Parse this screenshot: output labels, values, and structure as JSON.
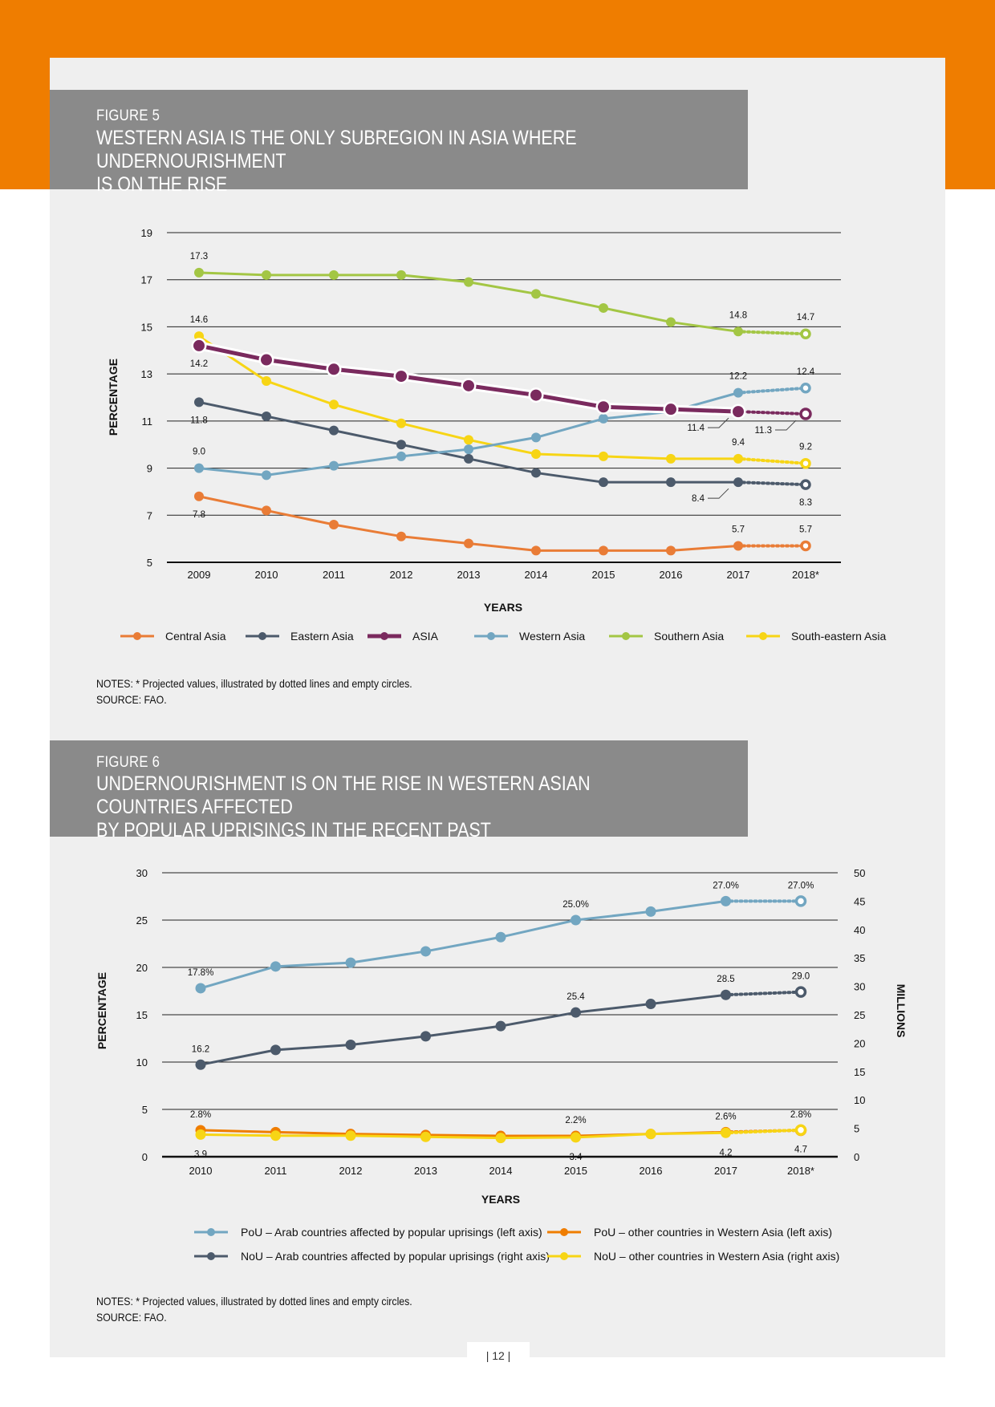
{
  "figure5": {
    "label": "FIGURE 5",
    "title_line1": "WESTERN ASIA IS THE ONLY SUBREGION IN ASIA WHERE UNDERNOURISHMENT",
    "title_line2": "IS ON THE RISE",
    "notes": "NOTES: * Projected values, illustrated by dotted lines and empty circles.",
    "source": "SOURCE: FAO.",
    "chart_data": {
      "type": "line",
      "xlabel": "YEARS",
      "ylabel": "PERCENTAGE",
      "ylim": [
        5,
        19
      ],
      "yticks": [
        5,
        7,
        9,
        11,
        13,
        15,
        17,
        19
      ],
      "categories": [
        "2009",
        "2010",
        "2011",
        "2012",
        "2013",
        "2014",
        "2015",
        "2016",
        "2017",
        "2018*"
      ],
      "projected_from_index": 8,
      "series": [
        {
          "name": "Southern Asia",
          "color": "#a3c644",
          "values": [
            17.3,
            17.2,
            17.2,
            17.2,
            16.9,
            16.4,
            15.8,
            15.2,
            14.8,
            14.7
          ]
        },
        {
          "name": "South-eastern Asia",
          "color": "#f7d515",
          "values": [
            14.6,
            12.7,
            11.7,
            10.9,
            10.2,
            9.6,
            9.5,
            9.4,
            9.4,
            9.2
          ]
        },
        {
          "name": "Eastern Asia",
          "color": "#4c5a6b",
          "values": [
            11.8,
            11.2,
            10.6,
            10.0,
            9.4,
            8.8,
            8.4,
            8.4,
            8.4,
            8.3
          ]
        },
        {
          "name": "Western Asia",
          "color": "#72a6c1",
          "values": [
            9.0,
            8.7,
            9.1,
            9.5,
            9.8,
            10.3,
            11.1,
            11.4,
            12.2,
            12.4
          ]
        },
        {
          "name": "Central Asia",
          "color": "#e97c36",
          "values": [
            7.8,
            7.2,
            6.6,
            6.1,
            5.8,
            5.5,
            5.5,
            5.5,
            5.7,
            5.7
          ]
        },
        {
          "name": "ASIA",
          "color": "#7a2a5e",
          "values": [
            14.2,
            13.6,
            13.2,
            12.9,
            12.5,
            12.1,
            11.6,
            11.5,
            11.4,
            11.3
          ]
        }
      ],
      "legend": [
        "Central Asia",
        "Eastern Asia",
        "ASIA",
        "Western Asia",
        "Southern Asia",
        "South-eastern Asia"
      ],
      "data_labels": [
        {
          "text": "17.3",
          "series": "Southern Asia",
          "index": 0,
          "pos": "above"
        },
        {
          "text": "14.8",
          "series": "Southern Asia",
          "index": 8,
          "pos": "above"
        },
        {
          "text": "14.7",
          "series": "Southern Asia",
          "index": 9,
          "pos": "above"
        },
        {
          "text": "14.6",
          "series": "South-eastern Asia",
          "index": 0,
          "pos": "above"
        },
        {
          "text": "9.4",
          "series": "South-eastern Asia",
          "index": 8,
          "pos": "above"
        },
        {
          "text": "9.2",
          "series": "South-eastern Asia",
          "index": 9,
          "pos": "above"
        },
        {
          "text": "14.2",
          "series": "ASIA",
          "index": 0,
          "pos": "below"
        },
        {
          "text": "11.4",
          "series": "ASIA",
          "index": 8,
          "pos": "leader-below-left"
        },
        {
          "text": "11.3",
          "series": "ASIA",
          "index": 9,
          "pos": "leader-below-left"
        },
        {
          "text": "12.2",
          "series": "Western Asia",
          "index": 8,
          "pos": "above"
        },
        {
          "text": "12.4",
          "series": "Western Asia",
          "index": 9,
          "pos": "above"
        },
        {
          "text": "9.0",
          "series": "Western Asia",
          "index": 0,
          "pos": "above"
        },
        {
          "text": "11.8",
          "series": "Eastern Asia",
          "index": 0,
          "pos": "below"
        },
        {
          "text": "8.4",
          "series": "Eastern Asia",
          "index": 8,
          "pos": "leader-below-left"
        },
        {
          "text": "8.3",
          "series": "Eastern Asia",
          "index": 9,
          "pos": "below"
        },
        {
          "text": "7.8",
          "series": "Central Asia",
          "index": 0,
          "pos": "below"
        },
        {
          "text": "5.7",
          "series": "Central Asia",
          "index": 8,
          "pos": "above"
        },
        {
          "text": "5.7",
          "series": "Central Asia",
          "index": 9,
          "pos": "above"
        }
      ]
    }
  },
  "figure6": {
    "label": "FIGURE 6",
    "title_line1": "UNDERNOURISHMENT IS ON THE RISE IN WESTERN ASIAN COUNTRIES AFFECTED",
    "title_line2": "BY POPULAR UPRISINGS IN THE RECENT PAST",
    "notes": "NOTES: * Projected values, illustrated by dotted lines and empty circles.",
    "source": "SOURCE: FAO.",
    "chart_data": {
      "type": "line",
      "xlabel": "YEARS",
      "ylabel": "PERCENTAGE",
      "ylabel_right": "MILLIONS",
      "ylim": [
        0,
        30
      ],
      "ylim_right": [
        0,
        50
      ],
      "yticks": [
        0,
        5,
        10,
        15,
        20,
        25,
        30
      ],
      "yticks_right": [
        0,
        5,
        10,
        15,
        20,
        25,
        30,
        35,
        40,
        45,
        50
      ],
      "categories": [
        "2010",
        "2011",
        "2012",
        "2013",
        "2014",
        "2015",
        "2016",
        "2017",
        "2018*"
      ],
      "projected_from_index": 7,
      "series": [
        {
          "name": "PoU – Arab countries affected by popular uprisings (left axis)",
          "axis": "left",
          "color": "#72a6c1",
          "values": [
            17.8,
            20.1,
            20.5,
            21.7,
            23.2,
            25.0,
            25.9,
            27.0,
            27.0
          ]
        },
        {
          "name": "NoU – Arab countries affected by popular uprisings (right axis)",
          "axis": "right",
          "color": "#4c5a6b",
          "values": [
            16.2,
            18.8,
            19.7,
            21.2,
            23.0,
            25.4,
            26.9,
            28.5,
            29.0
          ]
        },
        {
          "name": "PoU – other countries in Western Asia (left axis)",
          "axis": "left",
          "color": "#ef7d00",
          "values": [
            2.8,
            2.6,
            2.4,
            2.3,
            2.2,
            2.2,
            2.4,
            2.6,
            2.8
          ]
        },
        {
          "name": "NoU – other countries in Western Asia (right axis)",
          "axis": "right",
          "color": "#f7d515",
          "values": [
            3.9,
            3.7,
            3.7,
            3.5,
            3.3,
            3.4,
            4.0,
            4.2,
            4.7
          ]
        }
      ],
      "data_labels": [
        {
          "text": "17.8%",
          "series": 0,
          "index": 0,
          "pos": "above"
        },
        {
          "text": "25.0%",
          "series": 0,
          "index": 5,
          "pos": "above"
        },
        {
          "text": "27.0%",
          "series": 0,
          "index": 7,
          "pos": "above"
        },
        {
          "text": "27.0%",
          "series": 0,
          "index": 8,
          "pos": "above"
        },
        {
          "text": "16.2",
          "series": 1,
          "index": 0,
          "pos": "above"
        },
        {
          "text": "25.4",
          "series": 1,
          "index": 5,
          "pos": "above"
        },
        {
          "text": "28.5",
          "series": 1,
          "index": 7,
          "pos": "above"
        },
        {
          "text": "29.0",
          "series": 1,
          "index": 8,
          "pos": "above"
        },
        {
          "text": "2.8%",
          "series": 2,
          "index": 0,
          "pos": "above"
        },
        {
          "text": "2.2%",
          "series": 2,
          "index": 5,
          "pos": "above"
        },
        {
          "text": "2.6%",
          "series": 2,
          "index": 7,
          "pos": "above"
        },
        {
          "text": "2.8%",
          "series": 2,
          "index": 8,
          "pos": "above"
        },
        {
          "text": "3.9",
          "series": 3,
          "index": 0,
          "pos": "below"
        },
        {
          "text": "3.4",
          "series": 3,
          "index": 5,
          "pos": "below"
        },
        {
          "text": "4.2",
          "series": 3,
          "index": 7,
          "pos": "below"
        },
        {
          "text": "4.7",
          "series": 3,
          "index": 8,
          "pos": "below"
        }
      ]
    }
  },
  "page_number": "| 12 |"
}
